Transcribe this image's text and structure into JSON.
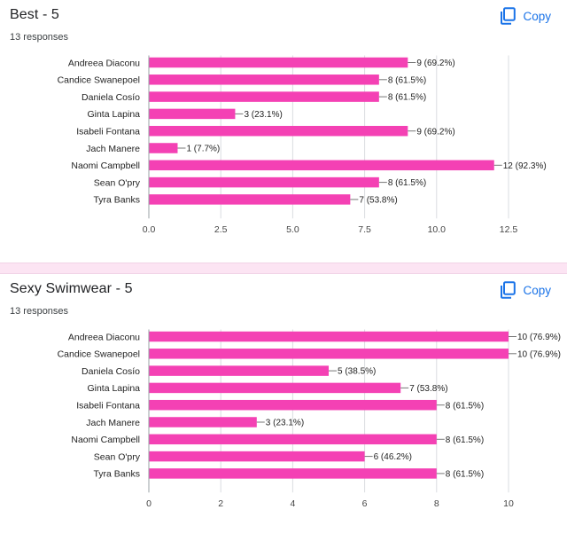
{
  "colors": {
    "bar": "#f441b4",
    "accent": "#1a73e8",
    "separator": "#fce4f3"
  },
  "cards": [
    {
      "title": "Best - 5",
      "responses": "13 responses",
      "copy_label": "Copy",
      "copy_icon": "copy-icon"
    },
    {
      "title": "Sexy Swimwear - 5",
      "responses": "13 responses",
      "copy_label": "Copy",
      "copy_icon": "copy-icon"
    }
  ],
  "chart_data": [
    {
      "type": "bar",
      "orientation": "horizontal",
      "categories": [
        "Andreea Diaconu",
        "Candice Swanepoel",
        "Daniela Cosío",
        "Ginta Lapina",
        "Isabeli Fontana",
        "Jach Manere",
        "Naomi Campbell",
        "Sean O'pry",
        "Tyra Banks"
      ],
      "values": [
        9,
        8,
        8,
        3,
        9,
        1,
        12,
        8,
        7
      ],
      "value_labels": [
        "9 (69.2%)",
        "8 (61.5%)",
        "8 (61.5%)",
        "3 (23.1%)",
        "9 (69.2%)",
        "1 (7.7%)",
        "12 (92.3%)",
        "8 (61.5%)",
        "7 (53.8%)"
      ],
      "xlim": [
        0,
        12.5
      ],
      "xticks": [
        0,
        2.5,
        5,
        7.5,
        10,
        12.5
      ],
      "xtick_labels": [
        "0.0",
        "2.5",
        "5.0",
        "7.5",
        "10.0",
        "12.5"
      ],
      "grid": true,
      "color": "#f441b4"
    },
    {
      "type": "bar",
      "orientation": "horizontal",
      "categories": [
        "Andreea Diaconu",
        "Candice Swanepoel",
        "Daniela Cosío",
        "Ginta Lapina",
        "Isabeli Fontana",
        "Jach Manere",
        "Naomi Campbell",
        "Sean O'pry",
        "Tyra Banks"
      ],
      "values": [
        10,
        10,
        5,
        7,
        8,
        3,
        8,
        6,
        8
      ],
      "value_labels": [
        "10 (76.9%)",
        "10 (76.9%)",
        "5 (38.5%)",
        "7 (53.8%)",
        "8 (61.5%)",
        "3 (23.1%)",
        "8 (61.5%)",
        "6 (46.2%)",
        "8 (61.5%)"
      ],
      "xlim": [
        0,
        10
      ],
      "xticks": [
        0,
        2,
        4,
        6,
        8,
        10
      ],
      "xtick_labels": [
        "0",
        "2",
        "4",
        "6",
        "8",
        "10"
      ],
      "grid": true,
      "color": "#f441b4"
    }
  ]
}
